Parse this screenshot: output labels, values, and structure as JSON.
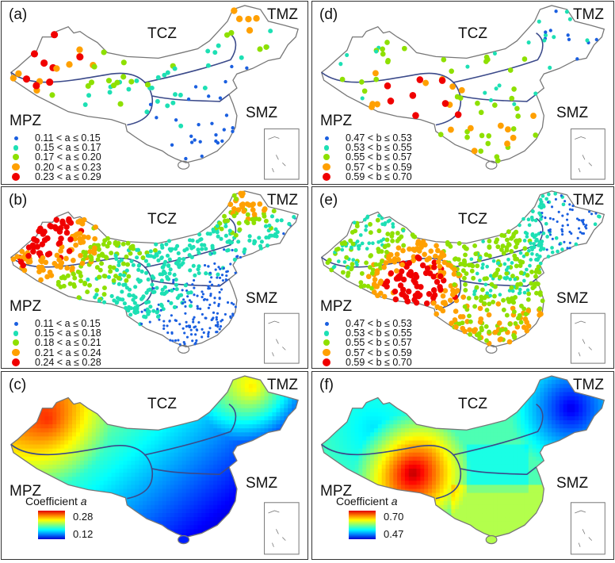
{
  "zones": {
    "tcz": "TCZ",
    "tmz": "TMZ",
    "mpz": "MPZ",
    "smz": "SMZ"
  },
  "legend_colors": [
    "#1a5fe0",
    "#1de0b4",
    "#8ee000",
    "#ffa000",
    "#f00000"
  ],
  "panels": {
    "a": {
      "label": "(a)",
      "legend": [
        "0.11 < a ≤ 0.15",
        "0.15 < a ≤ 0.17",
        "0.17 < a ≤ 0.20",
        "0.20 < a ≤ 0.23",
        "0.23 < a ≤ 0.29"
      ]
    },
    "b": {
      "label": "(b)",
      "legend": [
        "0.11 < a ≤ 0.15",
        "0.15 < a ≤ 0.18",
        "0.18 < a ≤ 0.21",
        "0.21 < a ≤ 0.24",
        "0.24 < a ≤ 0.28"
      ]
    },
    "c": {
      "label": "(c)",
      "colorbar": {
        "title": "Coefficient ",
        "var": "a",
        "max": "0.28",
        "min": "0.12"
      }
    },
    "d": {
      "label": "(d)",
      "legend": [
        "0.47 < b ≤ 0.53",
        "0.53 < b ≤ 0.55",
        "0.55 < b ≤ 0.57",
        "0.57 < b ≤ 0.59",
        "0.59 < b ≤ 0.70"
      ]
    },
    "e": {
      "label": "(e)",
      "legend": [
        "0.47 < b ≤ 0.53",
        "0.53 < b ≤ 0.55",
        "0.55 < b ≤ 0.57",
        "0.57 < b ≤ 0.59",
        "0.59 < b ≤ 0.70"
      ]
    },
    "f": {
      "label": "(f)",
      "colorbar": {
        "title": "Coefficient ",
        "var": "a",
        "max": "0.70",
        "min": "0.47"
      }
    }
  }
}
